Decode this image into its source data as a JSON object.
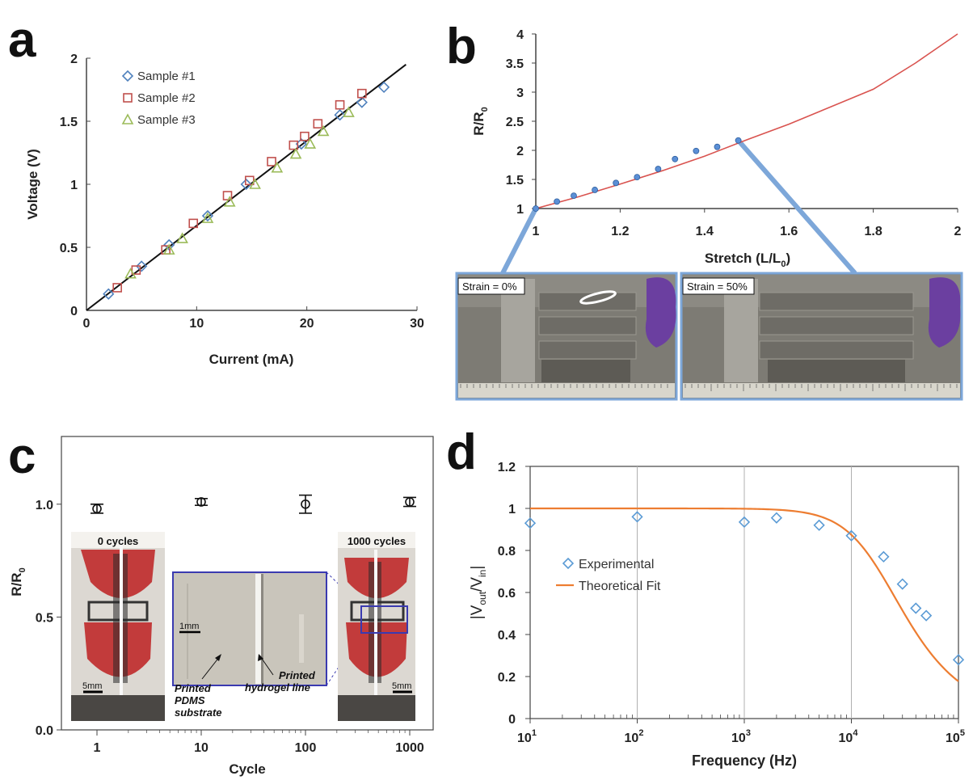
{
  "panel_letters": [
    "a",
    "b",
    "c",
    "d"
  ],
  "colors": {
    "sample1": "#4f81bd",
    "sample2": "#c0504d",
    "sample3": "#9bbb59",
    "fit_b": "#d9534f",
    "points_b": "#5b8fd6",
    "exp_d": "#5b9bd5",
    "fit_d": "#ed7d31",
    "callout": "#7da7d9",
    "inset_frame": "#3a3ab0"
  },
  "chart_data": [
    {
      "panel": "a",
      "type": "scatter",
      "xlabel": "Current (mA)",
      "ylabel": "Voltage (V)",
      "xlim": [
        0,
        30
      ],
      "ylim": [
        0,
        2
      ],
      "xticks": [
        0,
        10,
        20,
        30
      ],
      "yticks": [
        0,
        0.5,
        1,
        1.5,
        2
      ],
      "ytick_labels": [
        "0",
        "0.5",
        "1",
        "1.5",
        "2"
      ],
      "legend_position": "top-left",
      "series": [
        {
          "name": "Sample #1",
          "marker": "diamond",
          "x": [
            2.0,
            5.0,
            7.5,
            11.0,
            14.5,
            19.5,
            23.0,
            25.0,
            27.0
          ],
          "y": [
            0.13,
            0.35,
            0.52,
            0.75,
            1.0,
            1.32,
            1.55,
            1.65,
            1.77
          ]
        },
        {
          "name": "Sample #2",
          "marker": "square",
          "x": [
            2.8,
            4.5,
            7.2,
            9.7,
            12.8,
            14.8,
            16.8,
            18.8,
            19.8,
            21.0,
            23.0,
            25.0
          ],
          "y": [
            0.18,
            0.32,
            0.48,
            0.69,
            0.91,
            1.03,
            1.18,
            1.31,
            1.38,
            1.48,
            1.63,
            1.72
          ]
        },
        {
          "name": "Sample #3",
          "marker": "triangle",
          "x": [
            4.0,
            7.5,
            8.7,
            11.0,
            13.0,
            15.3,
            17.3,
            19.0,
            20.3,
            21.5,
            23.8
          ],
          "y": [
            0.29,
            0.48,
            0.57,
            0.73,
            0.86,
            1.0,
            1.13,
            1.24,
            1.32,
            1.42,
            1.57
          ]
        }
      ],
      "fit_line": {
        "x": [
          0,
          29
        ],
        "y": [
          0,
          1.95
        ]
      }
    },
    {
      "panel": "b",
      "type": "line",
      "xlabel": "Stretch (L/L",
      "xlabel_sub": "0",
      "xlabel_close": ")",
      "ylabel": "R/R",
      "ylabel_sub": "0",
      "xlim": [
        1,
        2
      ],
      "ylim": [
        1,
        4
      ],
      "xticks": [
        1,
        1.2,
        1.4,
        1.6,
        1.8,
        2
      ],
      "xtick_labels": [
        "1",
        "1.2",
        "1.4",
        "1.6",
        "1.8",
        "2"
      ],
      "yticks": [
        1,
        1.5,
        2,
        2.5,
        3,
        3.5,
        4
      ],
      "ytick_labels": [
        "1",
        "1.5",
        "2",
        "2.5",
        "3",
        "3.5",
        "4"
      ],
      "fit": {
        "x": [
          1.0,
          1.1,
          1.2,
          1.3,
          1.4,
          1.5,
          1.6,
          1.7,
          1.8,
          1.9,
          2.0
        ],
        "y": [
          1.0,
          1.2,
          1.42,
          1.65,
          1.9,
          2.18,
          2.45,
          2.75,
          3.05,
          3.5,
          4.0
        ]
      },
      "points": {
        "x": [
          1.0,
          1.05,
          1.09,
          1.14,
          1.19,
          1.24,
          1.29,
          1.33,
          1.38,
          1.43,
          1.48
        ],
        "y": [
          1.0,
          1.12,
          1.22,
          1.32,
          1.44,
          1.54,
          1.68,
          1.85,
          1.99,
          2.06,
          2.17
        ]
      },
      "photo_labels": [
        "Strain = 0%",
        "Strain = 50%"
      ]
    },
    {
      "panel": "c",
      "type": "scatter",
      "xlabel": "Cycle",
      "ylabel": "R/R",
      "ylabel_sub": "0",
      "xscale": "log",
      "xticks": [
        1,
        10,
        100,
        1000
      ],
      "xtick_labels": [
        "1",
        "10",
        "100",
        "1000"
      ],
      "ylim": [
        0,
        1.3
      ],
      "yticks": [
        0,
        0.5,
        1.0
      ],
      "ytick_labels": [
        "0.0",
        "0.5",
        "1.0"
      ],
      "points": {
        "x": [
          1,
          10,
          100,
          1000
        ],
        "y": [
          0.98,
          1.01,
          1.0,
          1.01
        ],
        "err": [
          0.02,
          0.015,
          0.04,
          0.02
        ]
      },
      "photo_labels": [
        "0 cycles",
        "1000 cycles"
      ],
      "scale_bars": [
        "5mm",
        "1mm",
        "5mm"
      ],
      "annotations": [
        {
          "lines": [
            "Printed",
            "PDMS",
            "substrate"
          ]
        },
        {
          "lines": [
            "Printed",
            "hydrogel line"
          ]
        }
      ]
    },
    {
      "panel": "d",
      "type": "scatter",
      "xlabel": "Frequency (Hz)",
      "ylabel": "|V",
      "ylabel_sub1": "out",
      "ylabel_mid": "/V",
      "ylabel_sub2": "in",
      "ylabel_close": "|",
      "xscale": "log",
      "xlim": [
        10,
        100000
      ],
      "ylim": [
        0,
        1.2
      ],
      "yticks": [
        0,
        0.2,
        0.4,
        0.6,
        0.8,
        1,
        1.2
      ],
      "ytick_labels": [
        "0",
        "0.2",
        "0.4",
        "0.6",
        "0.8",
        "1",
        "1.2"
      ],
      "xtick_base": "10",
      "xtick_exponents": [
        "1",
        "2",
        "3",
        "4",
        "5"
      ],
      "grid": "vertical",
      "legend_position": "left",
      "series": [
        {
          "name": "Experimental",
          "marker": "diamond",
          "x": [
            10,
            100,
            1000,
            2000,
            5000,
            10000,
            20000,
            30000,
            40000,
            50000,
            100000
          ],
          "y": [
            0.93,
            0.96,
            0.935,
            0.955,
            0.92,
            0.87,
            0.77,
            0.64,
            0.525,
            0.49,
            0.28
          ]
        },
        {
          "name": "Theoretical Fit",
          "marker": "line",
          "fc": 18000
        }
      ]
    }
  ]
}
